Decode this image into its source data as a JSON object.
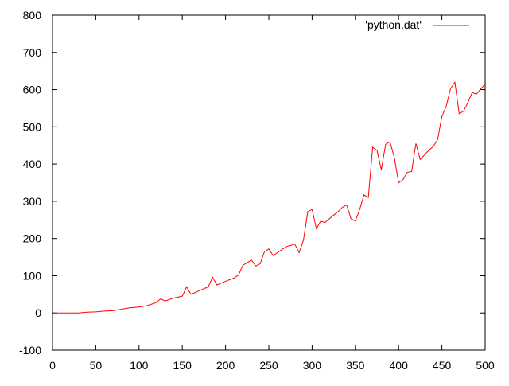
{
  "chart_data": {
    "type": "line",
    "title": "",
    "xlabel": "",
    "ylabel": "",
    "xlim": [
      0,
      500
    ],
    "ylim": [
      -100,
      800
    ],
    "xticks": [
      0,
      50,
      100,
      150,
      200,
      250,
      300,
      350,
      400,
      450,
      500
    ],
    "yticks": [
      -100,
      0,
      100,
      200,
      300,
      400,
      500,
      600,
      700,
      800
    ],
    "xtick_labels": [
      "0",
      "50",
      "100",
      "150",
      "200",
      "250",
      "300",
      "350",
      "400",
      "450",
      "500"
    ],
    "ytick_labels": [
      "-100",
      "0",
      "100",
      "200",
      "300",
      "400",
      "500",
      "600",
      "700",
      "800"
    ],
    "grid": false,
    "legend_position": "top-right",
    "series": [
      {
        "name": "'python.dat'",
        "color": "#ff0000",
        "x": [
          0,
          10,
          20,
          30,
          40,
          50,
          60,
          70,
          80,
          90,
          100,
          110,
          120,
          125,
          130,
          140,
          150,
          155,
          160,
          170,
          180,
          185,
          190,
          200,
          210,
          215,
          220,
          225,
          230,
          235,
          240,
          245,
          250,
          255,
          260,
          270,
          280,
          285,
          290,
          295,
          300,
          305,
          310,
          315,
          320,
          325,
          330,
          335,
          340,
          345,
          350,
          355,
          360,
          365,
          370,
          375,
          380,
          385,
          390,
          395,
          400,
          405,
          410,
          415,
          420,
          425,
          430,
          435,
          440,
          445,
          450,
          455,
          460,
          465,
          470,
          475,
          480,
          485,
          490,
          495,
          500
        ],
        "y": [
          0,
          0,
          0,
          0,
          2,
          3,
          5,
          6,
          10,
          14,
          16,
          20,
          28,
          38,
          32,
          40,
          45,
          70,
          50,
          60,
          70,
          96,
          75,
          85,
          94,
          102,
          128,
          135,
          142,
          126,
          132,
          165,
          172,
          154,
          162,
          178,
          185,
          162,
          195,
          272,
          278,
          226,
          247,
          243,
          253,
          263,
          272,
          284,
          290,
          253,
          247,
          278,
          317,
          310,
          445,
          437,
          385,
          453,
          460,
          418,
          350,
          358,
          378,
          380,
          455,
          412,
          425,
          437,
          447,
          465,
          528,
          555,
          603,
          620,
          535,
          542,
          565,
          592,
          588,
          602,
          615
        ]
      }
    ]
  }
}
